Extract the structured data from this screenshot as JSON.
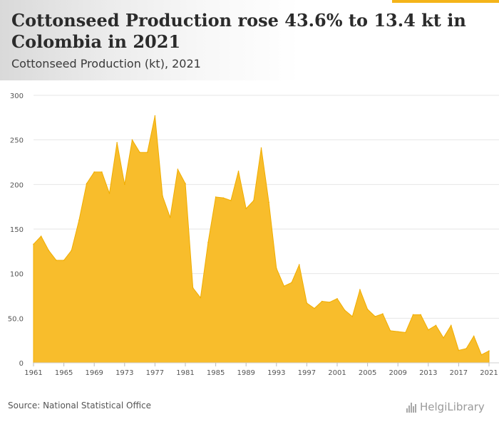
{
  "header": {
    "title": "Cottonseed Production rose 43.6% to 13.4 kt in Colombia in 2021",
    "subtitle": "Cottonseed Production (kt), 2021"
  },
  "footer": {
    "source": "Source: National Statistical Office",
    "brand": "HelgiLibrary"
  },
  "colors": {
    "area_fill": "#f8bd2c",
    "area_line": "#f0ad00",
    "accent": "#f4b41a",
    "grid": "#e6e6e6",
    "axis": "#555555"
  },
  "chart_data": {
    "type": "area",
    "title": "",
    "xlabel": "",
    "ylabel": "",
    "ylim": [
      0,
      300
    ],
    "xlim": [
      1961,
      2021
    ],
    "y_ticks": [
      0,
      50,
      100,
      150,
      200,
      250,
      300
    ],
    "y_tick_labels": [
      "0",
      "50.0",
      "100",
      "150",
      "200",
      "250",
      "300"
    ],
    "x_ticks": [
      1961,
      1965,
      1969,
      1973,
      1977,
      1981,
      1985,
      1989,
      1993,
      1997,
      2001,
      2005,
      2009,
      2013,
      2017,
      2021
    ],
    "x_tick_labels": [
      "1961",
      "1965",
      "1969",
      "1973",
      "1977",
      "1981",
      "1985",
      "1989",
      "1993",
      "1997",
      "2001",
      "2005",
      "2009",
      "2013",
      "2017",
      "2021"
    ],
    "grid": true,
    "x": [
      1961,
      1962,
      1963,
      1964,
      1965,
      1966,
      1967,
      1968,
      1969,
      1970,
      1971,
      1972,
      1973,
      1974,
      1975,
      1976,
      1977,
      1978,
      1979,
      1980,
      1981,
      1982,
      1983,
      1984,
      1985,
      1986,
      1987,
      1988,
      1989,
      1990,
      1991,
      1992,
      1993,
      1994,
      1995,
      1996,
      1997,
      1998,
      1999,
      2000,
      2001,
      2002,
      2003,
      2004,
      2005,
      2006,
      2007,
      2008,
      2009,
      2010,
      2011,
      2012,
      2013,
      2014,
      2015,
      2016,
      2017,
      2018,
      2019,
      2020,
      2021
    ],
    "series": [
      {
        "values": [
          133,
          142,
          126,
          115,
          115,
          126,
          160,
          201,
          214,
          214,
          190,
          247,
          200,
          250,
          236,
          236,
          277,
          187,
          163,
          217,
          201,
          84,
          73,
          135,
          186,
          185,
          182,
          215,
          173,
          182,
          241,
          180,
          106,
          86,
          90,
          110,
          67,
          61,
          69,
          68,
          72,
          59,
          52,
          82,
          60,
          52,
          55,
          36,
          35,
          34,
          54,
          54,
          37,
          42,
          28,
          42,
          14,
          16,
          30,
          9,
          13.4
        ]
      }
    ]
  }
}
